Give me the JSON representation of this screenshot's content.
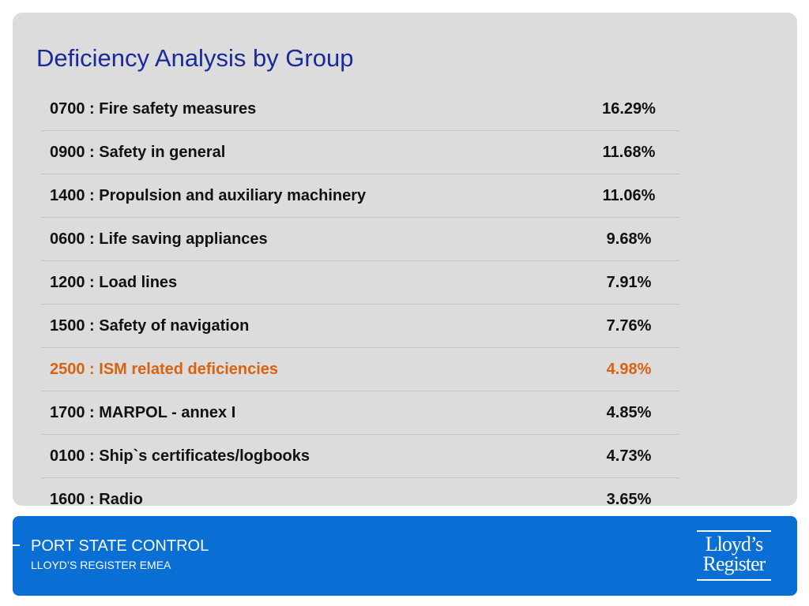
{
  "title": "Deficiency Analysis by Group",
  "rows": [
    {
      "label": "0700 : Fire safety measures",
      "value": "16.29%"
    },
    {
      "label": "0900 : Safety in general",
      "value": "11.68%"
    },
    {
      "label": "1400 : Propulsion and auxiliary machinery",
      "value": "11.06%"
    },
    {
      "label": "0600 : Life saving appliances",
      "value": "9.68%"
    },
    {
      "label": "1200 : Load lines",
      "value": "7.91%"
    },
    {
      "label": "1500 : Safety of navigation",
      "value": "7.76%"
    },
    {
      "label": "2500 : ISM related deficiencies",
      "value": "4.98%",
      "highlighted": true
    },
    {
      "label": "1700 : MARPOL - annex I",
      "value": "4.85%"
    },
    {
      "label": "0100 : Ship`s certificates/logbooks",
      "value": "4.73%"
    },
    {
      "label": "1600 : Radio",
      "value": "3.65%"
    }
  ],
  "footer": {
    "title": "PORT STATE CONTROL",
    "subtitle": "LLOYD’S REGISTER EMEA",
    "logo_line1": "Lloyd’s",
    "logo_line2": "Register"
  },
  "colors": {
    "title": "#1a2a9a",
    "highlight": "#d9620f",
    "panel": "#dcdcdd",
    "footer": "#0a6fd4"
  }
}
